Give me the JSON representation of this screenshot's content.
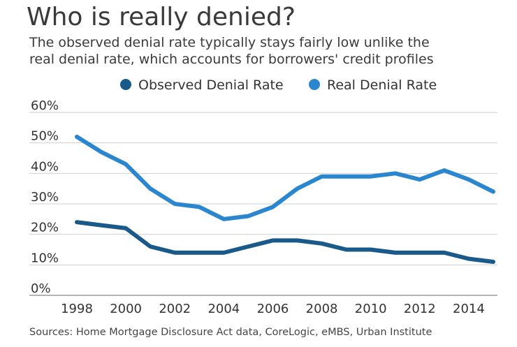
{
  "chart_data": {
    "type": "line",
    "title": "Who is really denied?",
    "subtitle_lines": [
      "The observed denial rate typically stays fairly low unlike the",
      "real denial rate, which accounts for borrowers' credit profiles"
    ],
    "source": "Sources: Home Mortgage Disclosure Act data, CoreLogic, eMBS, Urban Institute",
    "x": [
      1998,
      1999,
      2000,
      2001,
      2002,
      2003,
      2004,
      2005,
      2006,
      2007,
      2008,
      2009,
      2010,
      2011,
      2012,
      2013,
      2014,
      2015
    ],
    "xticks": [
      "1998",
      "2000",
      "2002",
      "2004",
      "2006",
      "2008",
      "2010",
      "2012",
      "2014"
    ],
    "yticks": [
      "0%",
      "10%",
      "20%",
      "30%",
      "40%",
      "50%",
      "60%"
    ],
    "xlim": [
      1998,
      2015
    ],
    "ylim": [
      0,
      60
    ],
    "grid": true,
    "legend_position": "top",
    "series": [
      {
        "name": "Observed Denial Rate",
        "color": "#1a5a8a",
        "values": [
          24,
          23,
          22,
          16,
          14,
          14,
          14,
          16,
          18,
          18,
          17,
          15,
          15,
          14,
          14,
          14,
          12,
          11
        ]
      },
      {
        "name": "Real Denial Rate",
        "color": "#2a86cf",
        "values": [
          52,
          47,
          43,
          35,
          30,
          29,
          25,
          26,
          29,
          35,
          39,
          39,
          39,
          40,
          38,
          41,
          38,
          34
        ]
      }
    ]
  }
}
